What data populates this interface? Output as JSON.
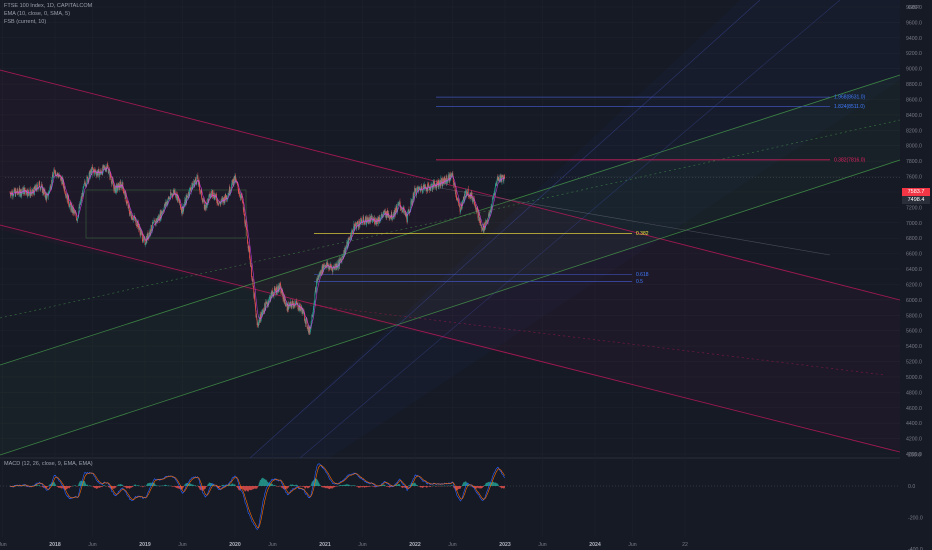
{
  "header": {
    "symbol_line": "FTSE 100 Index, 1D, CAPITALCOM",
    "ema_line": "EMA (10, close, 0, SMA, 5)",
    "fsb_line": "FSB (current, 10)",
    "macd_line": "MACD (12, 26, close, 9, EMA, EMA)"
  },
  "currency": "GBP",
  "price_tags": {
    "last": "7583.7",
    "last_color": "#f23645",
    "ema": "7498.4",
    "ema_color": "#2a2e39"
  },
  "price_axis": {
    "labels": [
      "9800.0",
      "9600.0",
      "9400.0",
      "9200.0",
      "9000.0",
      "8800.0",
      "8600.0",
      "8400.0",
      "8200.0",
      "8000.0",
      "7800.0",
      "7600.0",
      "7400.0",
      "7200.0",
      "7000.0",
      "6800.0",
      "6600.0",
      "6400.0",
      "6200.0",
      "6000.0",
      "5800.0",
      "5600.0",
      "5400.0",
      "5200.0",
      "5000.0",
      "4800.0",
      "4600.0",
      "4400.0",
      "4200.0",
      "4000.0"
    ]
  },
  "macd_axis": {
    "labels": [
      "200.0",
      "0.0",
      "-200.0",
      "-400.0"
    ]
  },
  "time_axis": {
    "labels": [
      "Jun",
      "2018",
      "Jun",
      "2019",
      "Jun",
      "2020",
      "Jun",
      "2021",
      "Jun",
      "2022",
      "Jun",
      "2023",
      "Jun",
      "2024",
      "Jun",
      "22"
    ]
  },
  "fib_labels": {
    "f1": "1.968(8631.0)",
    "f2": "1.824(8511.0)",
    "f3": "0.382",
    "f4": "0.618",
    "f5": "0.5",
    "f6": "0.382(7816.0)"
  },
  "colors": {
    "candle_up": "#26a69a",
    "candle_down": "#ef5350",
    "ema": "#e040fb",
    "fsb": "#4caf50",
    "macd": "#2962ff",
    "signal": "#ff6d00",
    "red_line": "#c2185b",
    "green_line": "#4caf50",
    "fib_blue": "#3f51b5",
    "fib_yellow": "#ffeb3b",
    "fib_red": "#e91e63"
  },
  "chart_data": {
    "type": "candlestick",
    "title": "FTSE 100 Index, 1D, CAPITALCOM",
    "ylim": [
      4000,
      9800
    ],
    "macd_ylim": [
      -400,
      200
    ],
    "series": [
      {
        "name": "FTSE 100 Index, 1D, CAPITALCOM",
        "x": [
          "2017-07",
          "2017-08",
          "2017-09",
          "2017-10",
          "2017-11",
          "2017-12",
          "2018-01",
          "2018-02",
          "2018-03",
          "2018-04",
          "2018-05",
          "2018-06",
          "2018-07",
          "2018-08",
          "2018-09",
          "2018-10",
          "2018-11",
          "2018-12",
          "2019-01",
          "2019-02",
          "2019-03",
          "2019-04",
          "2019-05",
          "2019-06",
          "2019-07",
          "2019-08",
          "2019-09",
          "2019-10",
          "2019-11",
          "2019-12",
          "2020-01",
          "2020-02",
          "2020-03",
          "2020-04",
          "2020-05",
          "2020-06",
          "2020-07",
          "2020-08",
          "2020-09",
          "2020-10",
          "2020-11",
          "2020-12",
          "2021-01",
          "2021-02",
          "2021-03",
          "2021-04",
          "2021-05",
          "2021-06",
          "2021-07",
          "2021-08",
          "2021-09",
          "2021-10",
          "2021-11",
          "2021-12",
          "2022-01",
          "2022-02",
          "2022-03",
          "2022-04",
          "2022-05",
          "2022-06",
          "2022-07",
          "2022-08",
          "2022-09",
          "2022-10",
          "2022-11",
          "2022-12"
        ],
        "close": [
          7390,
          7420,
          7380,
          7500,
          7320,
          7680,
          7550,
          7230,
          7060,
          7500,
          7680,
          7640,
          7740,
          7430,
          7500,
          7130,
          7000,
          6740,
          6950,
          7080,
          7280,
          7420,
          7160,
          7420,
          7580,
          7200,
          7400,
          7250,
          7350,
          7580,
          7290,
          6580,
          5670,
          5900,
          6080,
          6170,
          5900,
          5960,
          5870,
          5580,
          6260,
          6460,
          6410,
          6480,
          6710,
          6960,
          7020,
          7040,
          7030,
          7120,
          7090,
          7240,
          7060,
          7400,
          7460,
          7460,
          7510,
          7540,
          7610,
          7170,
          7420,
          7280,
          6900,
          7100,
          7570,
          7590
        ]
      }
    ]
  }
}
